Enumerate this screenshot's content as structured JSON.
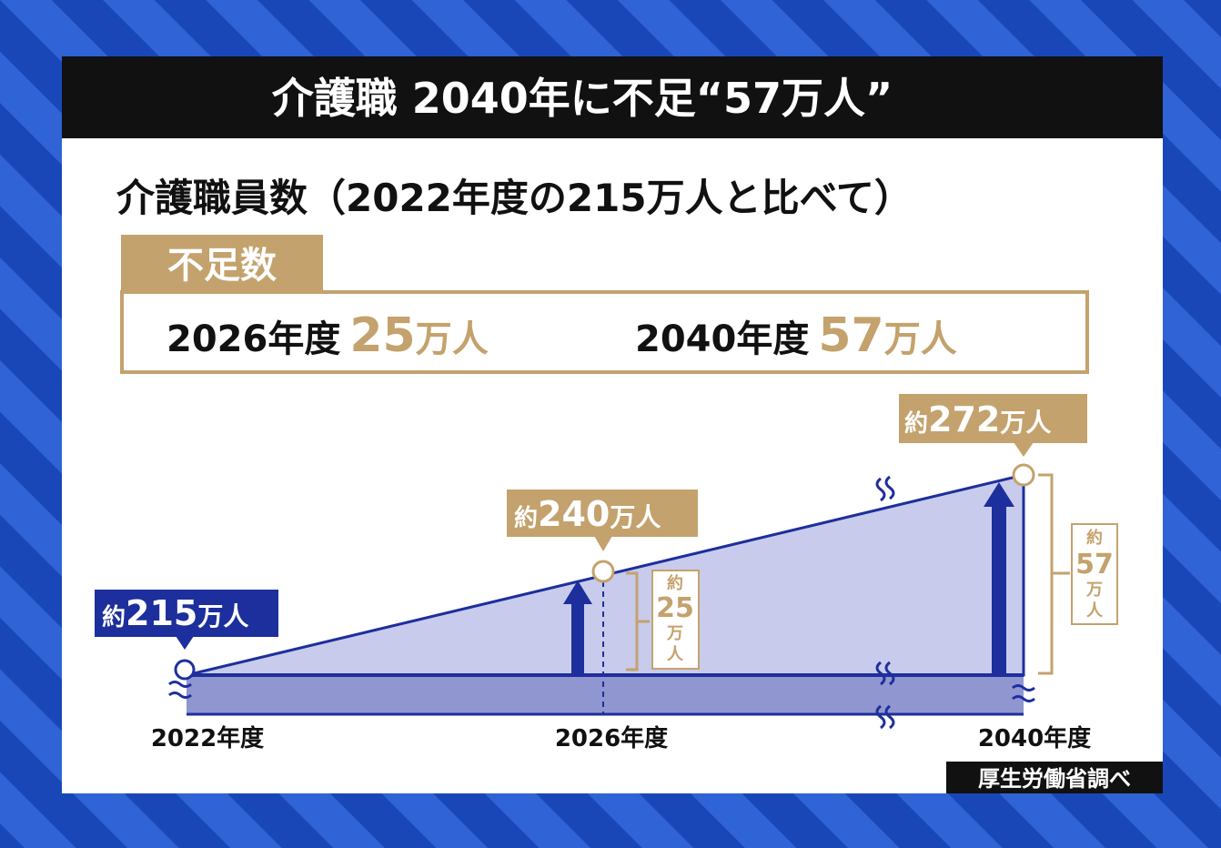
{
  "header": {
    "title": "介護職 2040年に不足“57万人”"
  },
  "subtitle": "介護職員数（2022年度の215万人と比べて）",
  "shortage": {
    "label": "不足数",
    "items": [
      {
        "year": "2026年度",
        "value": 25,
        "unit": "万人"
      },
      {
        "year": "2040年度",
        "value": 57,
        "unit": "万人"
      }
    ]
  },
  "callouts": [
    {
      "prefix": "約",
      "value": 215,
      "unit": "万人"
    },
    {
      "prefix": "約",
      "value": 240,
      "unit": "万人"
    },
    {
      "prefix": "約",
      "value": 272,
      "unit": "万人"
    }
  ],
  "brackets": [
    {
      "prefix": "約",
      "value": 25,
      "unit1": "万",
      "unit2": "人"
    },
    {
      "prefix": "約",
      "value": 57,
      "unit1": "万",
      "unit2": "人"
    }
  ],
  "x_labels": [
    "2022年度",
    "2026年度",
    "2040年度"
  ],
  "source": "厚生労働省調べ"
}
